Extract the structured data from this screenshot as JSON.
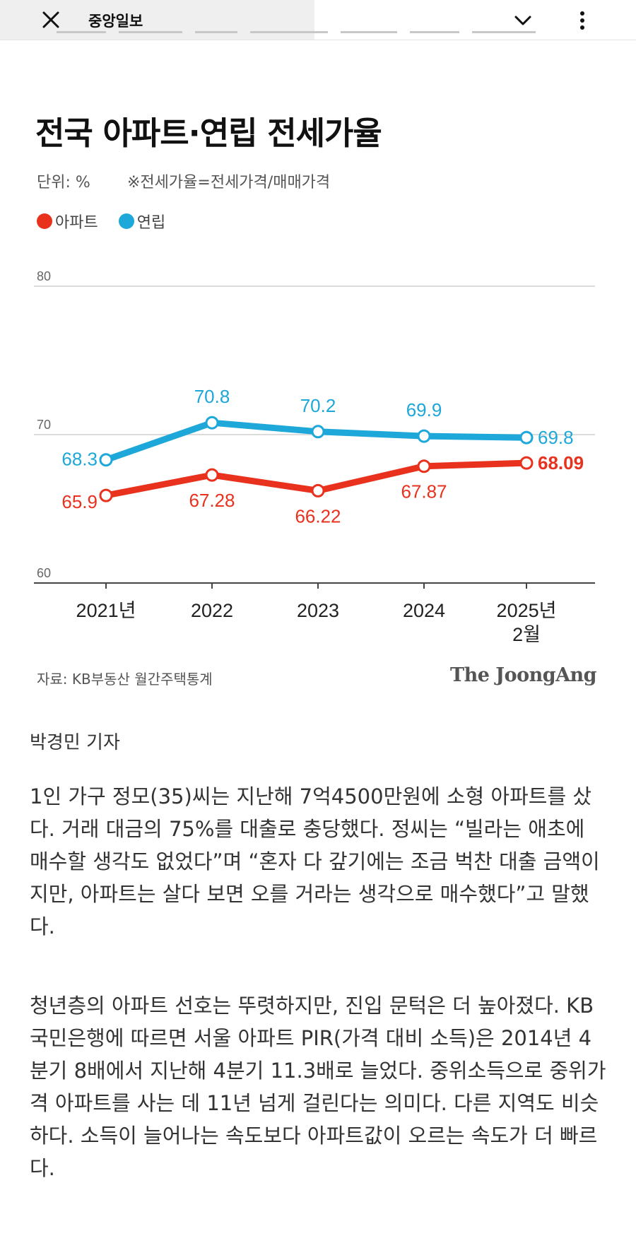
{
  "header": {
    "site_title": "중앙일보",
    "close_icon": "close-icon",
    "chevron_icon": "chevron-down-icon",
    "more_icon": "more-vertical-icon"
  },
  "figure": {
    "title": "전국 아파트·연립 전세가율",
    "unit": "단위: %",
    "note": "※전세가율=전세가격/매매가격",
    "source": "자료: KB부동산 월간주택통계",
    "brand": "The JoongAng"
  },
  "chart_data": {
    "type": "line",
    "title": "전국 아파트·연립 전세가율",
    "categories": [
      "2021년",
      "2022",
      "2023",
      "2024",
      "2025년\n2월"
    ],
    "ylim": [
      60,
      80
    ],
    "yticks": [
      "80",
      "70",
      "60"
    ],
    "grid": true,
    "legend_position": "top-left",
    "series": [
      {
        "name": "아파트",
        "color": "#e8321e",
        "values": [
          65.9,
          67.28,
          66.22,
          67.87,
          68.09
        ],
        "labels": [
          "65.9",
          "67.28",
          "66.22",
          "67.87",
          "68.09"
        ]
      },
      {
        "name": "연립",
        "color": "#1ea7d9",
        "values": [
          68.3,
          70.8,
          70.2,
          69.9,
          69.8
        ],
        "labels": [
          "68.3",
          "70.8",
          "70.2",
          "69.9",
          "69.8"
        ]
      }
    ]
  },
  "article": {
    "byline": "박경민 기자",
    "paragraphs": [
      "1인 가구 정모(35)씨는 지난해 7억4500만원에 소형 아파트를 샀다. 거래 대금의 75%를 대출로 충당했다. 정씨는 “빌라는 애초에 매수할 생각도 없었다”며 “혼자 다 갚기에는 조금 벅찬 대출 금액이지만, 아파트는 살다 보면 오를 거라는 생각으로 매수했다”고 말했다.",
      "청년층의 아파트 선호는 뚜렷하지만, 진입 문턱은 더 높아졌다. KB국민은행에 따르면 서울 아파트 PIR(가격 대비 소득)은 2014년 4분기 8배에서 지난해 4분기 11.3배로 늘었다. 중위소득으로 중위가격 아파트를 사는 데 11년 넘게 걸린다는 의미다. 다른 지역도 비슷하다. 소득이 늘어나는 속도보다 아파트값이 오르는 속도가 더 빠르다."
    ]
  }
}
